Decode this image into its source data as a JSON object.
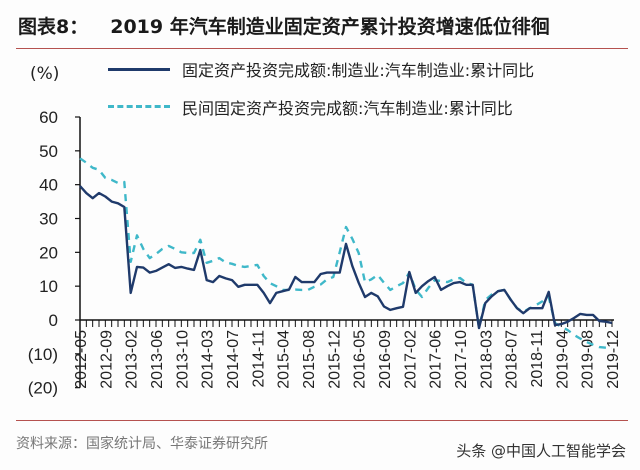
{
  "header": {
    "figure_no": "图表8：",
    "title": "2019 年汽车制造业固定资产累计投资增速低位徘徊"
  },
  "footer": {
    "source": "资料来源：国家统计局、华泰证券研究所",
    "watermark": "头条 @中国人工智能学会"
  },
  "colors": {
    "series1": "#1f3a6b",
    "series2": "#3fb8c9",
    "rule": "#b5524f"
  },
  "chart_data": {
    "type": "line",
    "title": "2019 年汽车制造业固定资产累计投资增速低位徘徊",
    "ylabel": "(%)",
    "ylim": [
      -20,
      60
    ],
    "yticks": [
      60,
      50,
      40,
      30,
      20,
      10,
      0,
      -10,
      -20
    ],
    "ytick_labels": [
      "60",
      "50",
      "40",
      "30",
      "20",
      "10",
      "0",
      "(10)",
      "(20)"
    ],
    "x_points": 85,
    "x_note": "monthly, January omitted",
    "xtick_labels": [
      "2012-05",
      "2012-09",
      "2013-02",
      "2013-06",
      "2013-10",
      "2014-03",
      "2014-07",
      "2014-11",
      "2015-04",
      "2015-08",
      "2015-12",
      "2016-05",
      "2016-09",
      "2017-02",
      "2017-06",
      "2017-10",
      "2018-03",
      "2018-07",
      "2018-11",
      "2019-04",
      "2019-08",
      "2019-12"
    ],
    "xtick_label_every": 4,
    "legend_position": "top",
    "series": [
      {
        "name": "固定资产投资完成额:制造业:汽车制造业:累计同比",
        "style": "solid",
        "values": [
          39.6,
          37.5,
          36,
          37.5,
          36.5,
          35,
          34.5,
          33.4,
          8,
          15.7,
          15.5,
          14,
          14.5,
          15.5,
          16.5,
          15.4,
          15.7,
          15.2,
          14.8,
          20.7,
          11.8,
          11.2,
          13,
          12.3,
          11.8,
          9.8,
          10.4,
          10.4,
          10.4,
          8,
          5,
          8,
          8.5,
          9,
          12.7,
          11.2,
          11.2,
          11.2,
          13.6,
          14,
          14,
          14,
          22.5,
          16,
          11,
          6.8,
          8,
          7,
          4,
          3,
          3.5,
          3.9,
          14.2,
          8,
          10,
          11.5,
          12.7,
          8.9,
          10,
          10.9,
          11.2,
          10.4,
          10.4,
          -2.4,
          5,
          7,
          8.5,
          8.9,
          6,
          3.5,
          2,
          3.5,
          3.5,
          3.5,
          8.3,
          -1.5,
          -1.2,
          -0.5,
          0.6,
          1.8,
          1.5,
          1.5,
          -0.3,
          -0.5,
          -0.9
        ]
      },
      {
        "name": "民间固定资产投资完成额:汽车制造业:累计同比",
        "style": "dashed",
        "values": [
          47.8,
          46.5,
          45,
          44.4,
          42,
          41.4,
          40.5,
          40.8,
          17.2,
          25,
          21,
          18.3,
          19.5,
          21,
          21.9,
          21,
          20,
          19.8,
          19.8,
          23.7,
          16.9,
          17.5,
          18.3,
          17,
          16.6,
          16,
          15.7,
          16,
          16.3,
          13,
          10.9,
          10,
          8.9,
          8.9,
          9,
          8.9,
          8.9,
          9.8,
          10.5,
          12,
          12.7,
          20,
          27.5,
          24,
          19.8,
          11.2,
          12,
          13.3,
          11,
          8.9,
          10,
          10.9,
          14,
          9,
          6.8,
          9.5,
          11.8,
          11.5,
          11.2,
          12,
          12.4,
          11,
          10.4,
          -2.4,
          5.9,
          7.5,
          8.5,
          8.9,
          6,
          3.5,
          2.4,
          3.5,
          4.4,
          5.5,
          6.8,
          -0.9,
          -2,
          -3,
          -4.4,
          -5.5,
          -6.5,
          -7.3,
          -8,
          -8.2,
          -8.3
        ]
      }
    ]
  }
}
